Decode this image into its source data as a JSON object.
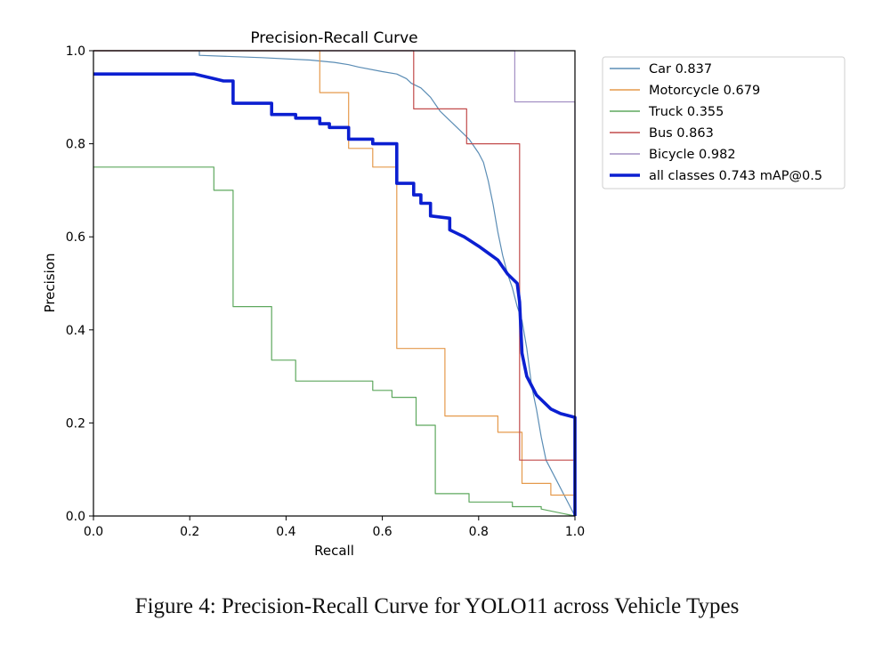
{
  "caption": "Figure 4: Precision-Recall Curve for YOLO11 across Vehicle Types",
  "chart_data": {
    "type": "line",
    "title": "Precision-Recall Curve",
    "xlabel": "Recall",
    "ylabel": "Precision",
    "xlim": [
      0,
      1
    ],
    "ylim": [
      0,
      1
    ],
    "xticks": [
      0.0,
      0.2,
      0.4,
      0.6,
      0.8,
      1.0
    ],
    "yticks": [
      0.0,
      0.2,
      0.4,
      0.6,
      0.8,
      1.0
    ],
    "tick_labels_x": [
      "0.0",
      "0.2",
      "0.4",
      "0.6",
      "0.8",
      "1.0"
    ],
    "tick_labels_y": [
      "0.0",
      "0.2",
      "0.4",
      "0.6",
      "0.8",
      "1.0"
    ],
    "grid": false,
    "legend_position": "outside-top-right",
    "series": [
      {
        "name": "Car 0.837",
        "color": "#5b8db5",
        "weight": "thin",
        "points": [
          [
            0,
            1
          ],
          [
            0.22,
            1
          ],
          [
            0.22,
            0.99
          ],
          [
            0.35,
            0.985
          ],
          [
            0.45,
            0.98
          ],
          [
            0.5,
            0.975
          ],
          [
            0.53,
            0.97
          ],
          [
            0.55,
            0.965
          ],
          [
            0.6,
            0.955
          ],
          [
            0.63,
            0.95
          ],
          [
            0.65,
            0.94
          ],
          [
            0.66,
            0.93
          ],
          [
            0.68,
            0.92
          ],
          [
            0.7,
            0.9
          ],
          [
            0.72,
            0.87
          ],
          [
            0.74,
            0.85
          ],
          [
            0.76,
            0.83
          ],
          [
            0.78,
            0.81
          ],
          [
            0.8,
            0.78
          ],
          [
            0.81,
            0.76
          ],
          [
            0.82,
            0.72
          ],
          [
            0.83,
            0.67
          ],
          [
            0.84,
            0.61
          ],
          [
            0.85,
            0.56
          ],
          [
            0.86,
            0.52
          ],
          [
            0.87,
            0.49
          ],
          [
            0.88,
            0.45
          ],
          [
            0.89,
            0.42
          ],
          [
            0.9,
            0.36
          ],
          [
            0.91,
            0.28
          ],
          [
            0.92,
            0.23
          ],
          [
            0.93,
            0.17
          ],
          [
            0.94,
            0.12
          ],
          [
            0.96,
            0.08
          ],
          [
            0.98,
            0.04
          ],
          [
            1,
            0.0
          ]
        ]
      },
      {
        "name": "Motorcycle 0.679",
        "color": "#e59a4c",
        "weight": "thin",
        "points": [
          [
            0,
            1
          ],
          [
            0.47,
            1
          ],
          [
            0.47,
            0.91
          ],
          [
            0.53,
            0.91
          ],
          [
            0.53,
            0.79
          ],
          [
            0.58,
            0.79
          ],
          [
            0.58,
            0.75
          ],
          [
            0.63,
            0.75
          ],
          [
            0.63,
            0.36
          ],
          [
            0.73,
            0.36
          ],
          [
            0.73,
            0.215
          ],
          [
            0.84,
            0.215
          ],
          [
            0.84,
            0.18
          ],
          [
            0.89,
            0.18
          ],
          [
            0.89,
            0.07
          ],
          [
            0.95,
            0.07
          ],
          [
            0.95,
            0.045
          ],
          [
            1,
            0.045
          ],
          [
            1,
            0.0
          ]
        ]
      },
      {
        "name": "Truck 0.355",
        "color": "#5ea85e",
        "weight": "thin",
        "points": [
          [
            0,
            0.75
          ],
          [
            0.25,
            0.75
          ],
          [
            0.25,
            0.7
          ],
          [
            0.29,
            0.7
          ],
          [
            0.29,
            0.45
          ],
          [
            0.37,
            0.45
          ],
          [
            0.37,
            0.335
          ],
          [
            0.42,
            0.335
          ],
          [
            0.42,
            0.29
          ],
          [
            0.58,
            0.29
          ],
          [
            0.58,
            0.27
          ],
          [
            0.62,
            0.27
          ],
          [
            0.62,
            0.255
          ],
          [
            0.67,
            0.255
          ],
          [
            0.67,
            0.195
          ],
          [
            0.71,
            0.195
          ],
          [
            0.71,
            0.048
          ],
          [
            0.78,
            0.048
          ],
          [
            0.78,
            0.03
          ],
          [
            0.87,
            0.03
          ],
          [
            0.87,
            0.02
          ],
          [
            0.93,
            0.02
          ],
          [
            0.93,
            0.015
          ],
          [
            1,
            0.0
          ]
        ]
      },
      {
        "name": "Bus 0.863",
        "color": "#c24b4b",
        "weight": "thin",
        "points": [
          [
            0,
            1
          ],
          [
            0.665,
            1
          ],
          [
            0.665,
            0.875
          ],
          [
            0.775,
            0.875
          ],
          [
            0.775,
            0.8
          ],
          [
            0.885,
            0.8
          ],
          [
            0.885,
            0.12
          ],
          [
            1,
            0.12
          ],
          [
            1,
            0.0
          ]
        ]
      },
      {
        "name": "Bicycle 0.982",
        "color": "#a390c4",
        "weight": "thin",
        "points": [
          [
            0,
            1
          ],
          [
            0.875,
            1
          ],
          [
            0.875,
            0.89
          ],
          [
            1,
            0.89
          ],
          [
            1,
            0.0
          ]
        ]
      },
      {
        "name": "all classes 0.743 mAP@0.5",
        "color": "#0b1fd1",
        "weight": "thick",
        "points": [
          [
            0,
            0.95
          ],
          [
            0.21,
            0.95
          ],
          [
            0.25,
            0.94
          ],
          [
            0.27,
            0.935
          ],
          [
            0.29,
            0.935
          ],
          [
            0.29,
            0.887
          ],
          [
            0.37,
            0.887
          ],
          [
            0.37,
            0.863
          ],
          [
            0.42,
            0.863
          ],
          [
            0.42,
            0.855
          ],
          [
            0.47,
            0.855
          ],
          [
            0.47,
            0.843
          ],
          [
            0.49,
            0.843
          ],
          [
            0.49,
            0.835
          ],
          [
            0.53,
            0.835
          ],
          [
            0.53,
            0.81
          ],
          [
            0.58,
            0.81
          ],
          [
            0.58,
            0.8
          ],
          [
            0.63,
            0.8
          ],
          [
            0.63,
            0.715
          ],
          [
            0.665,
            0.715
          ],
          [
            0.665,
            0.69
          ],
          [
            0.68,
            0.69
          ],
          [
            0.68,
            0.672
          ],
          [
            0.7,
            0.672
          ],
          [
            0.7,
            0.645
          ],
          [
            0.74,
            0.64
          ],
          [
            0.74,
            0.615
          ],
          [
            0.77,
            0.6
          ],
          [
            0.8,
            0.58
          ],
          [
            0.82,
            0.565
          ],
          [
            0.84,
            0.55
          ],
          [
            0.86,
            0.52
          ],
          [
            0.88,
            0.5
          ],
          [
            0.885,
            0.46
          ],
          [
            0.89,
            0.35
          ],
          [
            0.9,
            0.3
          ],
          [
            0.92,
            0.26
          ],
          [
            0.95,
            0.23
          ],
          [
            0.97,
            0.22
          ],
          [
            1,
            0.212
          ],
          [
            1,
            0.0
          ]
        ]
      }
    ]
  }
}
